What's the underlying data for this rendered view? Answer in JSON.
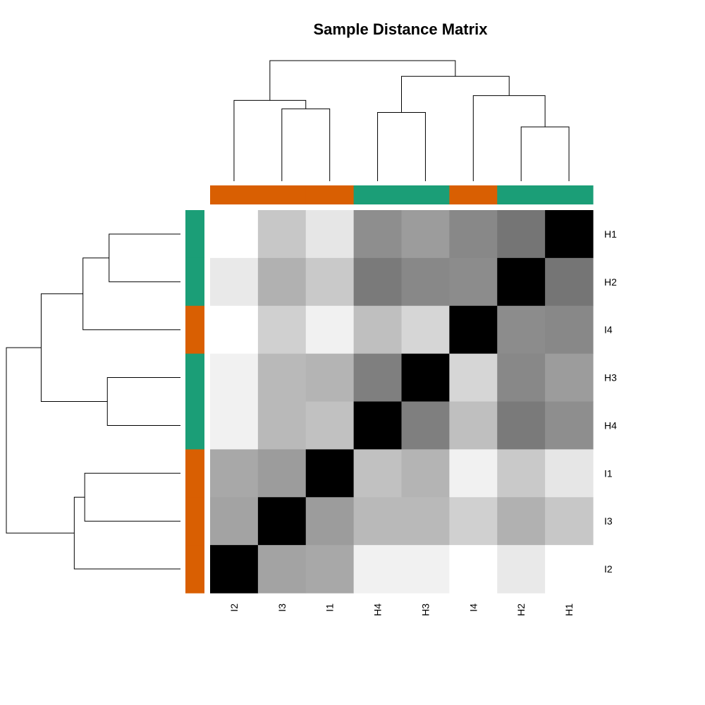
{
  "chart_data": {
    "type": "heatmap",
    "title": "Sample Distance Matrix",
    "col_labels": [
      "I2",
      "I3",
      "I1",
      "H4",
      "H3",
      "I4",
      "H2",
      "H1"
    ],
    "row_labels": [
      "H1",
      "H2",
      "I4",
      "H3",
      "H4",
      "I1",
      "I3",
      "I2"
    ],
    "colors": {
      "H": "#1B9E77",
      "I": "#D95F02"
    },
    "col_groups": [
      "I",
      "I",
      "I",
      "H",
      "H",
      "I",
      "H",
      "H"
    ],
    "row_groups": [
      "H",
      "H",
      "I",
      "H",
      "H",
      "I",
      "I",
      "I"
    ],
    "values": [
      [
        255,
        199,
        230,
        142,
        156,
        136,
        117,
        0
      ],
      [
        233,
        177,
        201,
        122,
        136,
        140,
        0,
        117
      ],
      [
        255,
        208,
        241,
        191,
        214,
        0,
        140,
        136
      ],
      [
        241,
        185,
        180,
        127,
        0,
        214,
        136,
        156
      ],
      [
        241,
        185,
        193,
        0,
        127,
        191,
        122,
        142
      ],
      [
        168,
        156,
        0,
        193,
        180,
        241,
        201,
        230
      ],
      [
        163,
        0,
        156,
        185,
        185,
        208,
        177,
        199
      ],
      [
        0,
        163,
        168,
        241,
        241,
        255,
        233,
        255
      ]
    ],
    "value_scale": "grayscale 0-255, black = identical (distance 0)",
    "col_dendrogram": {
      "leaves": [
        "I2",
        "I3",
        "I1",
        "H4",
        "H3",
        "I4",
        "H2",
        "H1"
      ],
      "merges": [
        {
          "a": "H2",
          "b": "H1",
          "height": 0.45
        },
        {
          "a": "H4",
          "b": "H3",
          "height": 0.57
        },
        {
          "a": "I3",
          "b": "I1",
          "height": 0.6
        },
        {
          "a": [
            "I2"
          ],
          "b": [
            "I3",
            "I1"
          ],
          "height": 0.67
        },
        {
          "a": [
            "I4"
          ],
          "b": [
            "H2",
            "H1"
          ],
          "height": 0.71
        },
        {
          "a": [
            "H4",
            "H3"
          ],
          "b": [
            "I4",
            "H2",
            "H1"
          ],
          "height": 0.87
        },
        {
          "a": [
            "I2",
            "I3",
            "I1"
          ],
          "b": [
            "H4",
            "H3",
            "I4",
            "H2",
            "H1"
          ],
          "height": 1.0
        }
      ]
    },
    "row_dendrogram": {
      "leaves": [
        "H1",
        "H2",
        "I4",
        "H3",
        "H4",
        "I1",
        "I3",
        "I2"
      ],
      "merges": [
        {
          "a": "H1",
          "b": "H2",
          "height": 0.41
        },
        {
          "a": "H3",
          "b": "H4",
          "height": 0.42
        },
        {
          "a": "I1",
          "b": "I3",
          "height": 0.55
        },
        {
          "a": [
            "H1",
            "H2"
          ],
          "b": [
            "I4"
          ],
          "height": 0.56
        },
        {
          "a": [
            "I1",
            "I3"
          ],
          "b": [
            "I2"
          ],
          "height": 0.61
        },
        {
          "a": [
            "H1",
            "H2",
            "I4"
          ],
          "b": [
            "H3",
            "H4"
          ],
          "height": 0.8
        },
        {
          "a": [
            "H1",
            "H2",
            "I4",
            "H3",
            "H4"
          ],
          "b": [
            "I1",
            "I3",
            "I2"
          ],
          "height": 1.0
        }
      ]
    }
  }
}
